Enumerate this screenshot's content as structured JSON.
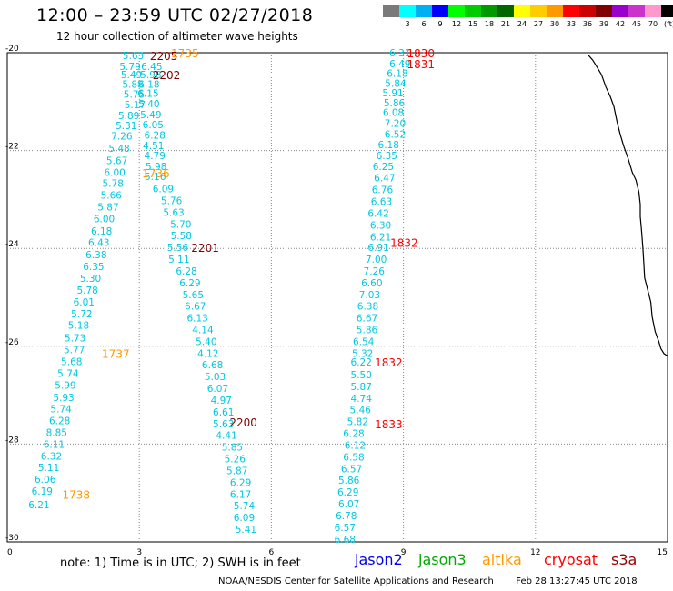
{
  "header": {
    "title": "12:00 – 23:59 UTC 02/27/2018",
    "subtitle": "12 hour collection of altimeter wave heights"
  },
  "scale": {
    "unit": "(ft)",
    "entries": [
      {
        "label": "",
        "color": "#7a7a7a"
      },
      {
        "label": "3",
        "color": "#00ffff"
      },
      {
        "label": "6",
        "color": "#00b0f0"
      },
      {
        "label": "9",
        "color": "#0000ff"
      },
      {
        "label": "12",
        "color": "#00ff00"
      },
      {
        "label": "15",
        "color": "#00cc00"
      },
      {
        "label": "18",
        "color": "#009900"
      },
      {
        "label": "21",
        "color": "#006600"
      },
      {
        "label": "24",
        "color": "#ffff00"
      },
      {
        "label": "27",
        "color": "#ffcc00"
      },
      {
        "label": "30",
        "color": "#ff9900"
      },
      {
        "label": "33",
        "color": "#ff0000"
      },
      {
        "label": "36",
        "color": "#cc0000"
      },
      {
        "label": "39",
        "color": "#800000"
      },
      {
        "label": "42",
        "color": "#9900cc"
      },
      {
        "label": "45",
        "color": "#cc33cc"
      },
      {
        "label": "70",
        "color": "#ff99cc"
      },
      {
        "label": "",
        "color": "#000000"
      }
    ]
  },
  "footer": {
    "note": "note: 1) Time is in UTC; 2) SWH is in feet",
    "legend": [
      {
        "label": "jason2",
        "color": "#0000ee"
      },
      {
        "label": "jason3",
        "color": "#00aa00"
      },
      {
        "label": "altika",
        "color": "#ff9900"
      },
      {
        "label": "cryosat",
        "color": "#ff0000"
      },
      {
        "label": "s3a",
        "color": "#990000"
      }
    ],
    "credit": "NOAA/NESDIS Center for Satellite Applications and Research",
    "timestamp": "Feb 28 13:27:45 UTC 2018"
  },
  "chart_data": {
    "type": "scatter",
    "x_ticks": [
      "0",
      "3",
      "6",
      "9",
      "12",
      "15"
    ],
    "y_ticks": [
      "-20",
      "-22",
      "-24",
      "-26",
      "-28",
      "-30"
    ],
    "xlim": [
      0,
      15
    ],
    "ylim": [
      -30,
      -20
    ],
    "grid": "dotted",
    "value_color": "#00c8e0",
    "series": [
      {
        "points": [
          {
            "x": 2.62,
            "y": -20.06,
            "v": "5.63"
          },
          {
            "x": 2.55,
            "y": -20.28,
            "v": "5.79"
          },
          {
            "x": 2.58,
            "y": -20.45,
            "v": "5.49"
          },
          {
            "x": 2.61,
            "y": -20.64,
            "v": "5.88"
          },
          {
            "x": 2.64,
            "y": -20.85,
            "v": "5.75"
          },
          {
            "x": 2.66,
            "y": -21.06,
            "v": "5.17"
          },
          {
            "x": 2.52,
            "y": -21.28,
            "v": "5.89"
          },
          {
            "x": 2.46,
            "y": -21.49,
            "v": "5.31"
          },
          {
            "x": 2.36,
            "y": -21.7,
            "v": "7.26"
          },
          {
            "x": 2.3,
            "y": -21.95,
            "v": "5.48"
          },
          {
            "x": 2.25,
            "y": -22.2,
            "v": "5.67"
          },
          {
            "x": 2.2,
            "y": -22.44,
            "v": "6.00"
          },
          {
            "x": 2.16,
            "y": -22.67,
            "v": "5.78"
          },
          {
            "x": 2.12,
            "y": -22.91,
            "v": "5.66"
          },
          {
            "x": 2.05,
            "y": -23.15,
            "v": "5.87"
          },
          {
            "x": 1.96,
            "y": -23.39,
            "v": "6.00"
          },
          {
            "x": 1.9,
            "y": -23.64,
            "v": "6.18"
          },
          {
            "x": 1.84,
            "y": -23.88,
            "v": "6.43"
          },
          {
            "x": 1.78,
            "y": -24.13,
            "v": "6.38"
          },
          {
            "x": 1.72,
            "y": -24.37,
            "v": "6.35"
          },
          {
            "x": 1.65,
            "y": -24.61,
            "v": "5.30"
          },
          {
            "x": 1.58,
            "y": -24.85,
            "v": "5.78"
          },
          {
            "x": 1.5,
            "y": -25.09,
            "v": "6.01"
          },
          {
            "x": 1.45,
            "y": -25.33,
            "v": "5.72"
          },
          {
            "x": 1.38,
            "y": -25.57,
            "v": "5.18"
          },
          {
            "x": 1.3,
            "y": -25.83,
            "v": "5.73"
          },
          {
            "x": 1.28,
            "y": -26.07,
            "v": "5.77"
          },
          {
            "x": 1.22,
            "y": -26.31,
            "v": "5.68"
          },
          {
            "x": 1.14,
            "y": -26.55,
            "v": "5.74"
          },
          {
            "x": 1.08,
            "y": -26.79,
            "v": "5.99"
          },
          {
            "x": 1.04,
            "y": -27.04,
            "v": "5.93"
          },
          {
            "x": 0.98,
            "y": -27.28,
            "v": "5.74"
          },
          {
            "x": 0.95,
            "y": -27.52,
            "v": "6.28"
          },
          {
            "x": 0.88,
            "y": -27.76,
            "v": "8.85"
          },
          {
            "x": 0.82,
            "y": -28.0,
            "v": "6.11"
          },
          {
            "x": 0.76,
            "y": -28.24,
            "v": "6.32"
          },
          {
            "x": 0.7,
            "y": -28.48,
            "v": "5.11"
          },
          {
            "x": 0.62,
            "y": -28.72,
            "v": "6.06"
          },
          {
            "x": 0.55,
            "y": -28.96,
            "v": "6.19"
          },
          {
            "x": 0.48,
            "y": -29.24,
            "v": "6.21"
          }
        ]
      },
      {
        "points": [
          {
            "x": 3.04,
            "y": -20.28,
            "v": "6.45"
          },
          {
            "x": 3.02,
            "y": -20.45,
            "v": "5.98"
          },
          {
            "x": 2.98,
            "y": -20.64,
            "v": "6.18"
          },
          {
            "x": 2.96,
            "y": -20.83,
            "v": "6.15"
          },
          {
            "x": 2.98,
            "y": -21.04,
            "v": "5.40"
          },
          {
            "x": 3.02,
            "y": -21.26,
            "v": "5.49"
          },
          {
            "x": 3.07,
            "y": -21.47,
            "v": "6.05"
          },
          {
            "x": 3.11,
            "y": -21.68,
            "v": "6.28"
          },
          {
            "x": 3.08,
            "y": -21.9,
            "v": "4.51"
          },
          {
            "x": 3.11,
            "y": -22.1,
            "v": "4.79"
          },
          {
            "x": 3.14,
            "y": -22.32,
            "v": "5.98"
          },
          {
            "x": 3.12,
            "y": -22.53,
            "v": "5.16"
          },
          {
            "x": 3.3,
            "y": -22.78,
            "v": "6.09"
          },
          {
            "x": 3.49,
            "y": -23.02,
            "v": "5.76"
          },
          {
            "x": 3.54,
            "y": -23.26,
            "v": "5.63"
          },
          {
            "x": 3.7,
            "y": -23.5,
            "v": "5.70"
          },
          {
            "x": 3.71,
            "y": -23.74,
            "v": "5.58"
          },
          {
            "x": 3.63,
            "y": -23.98,
            "v": "5.56"
          },
          {
            "x": 3.66,
            "y": -24.22,
            "v": "5.11"
          },
          {
            "x": 3.83,
            "y": -24.46,
            "v": "6.28"
          },
          {
            "x": 3.91,
            "y": -24.7,
            "v": "6.29"
          },
          {
            "x": 3.98,
            "y": -24.94,
            "v": "5.65"
          },
          {
            "x": 4.03,
            "y": -25.18,
            "v": "6.67"
          },
          {
            "x": 4.08,
            "y": -25.42,
            "v": "6.13"
          },
          {
            "x": 4.2,
            "y": -25.66,
            "v": "4.14"
          },
          {
            "x": 4.28,
            "y": -25.9,
            "v": "5.40"
          },
          {
            "x": 4.32,
            "y": -26.14,
            "v": "4.12"
          },
          {
            "x": 4.42,
            "y": -26.38,
            "v": "6.68"
          },
          {
            "x": 4.48,
            "y": -26.62,
            "v": "5.03"
          },
          {
            "x": 4.54,
            "y": -26.86,
            "v": "6.07"
          },
          {
            "x": 4.62,
            "y": -27.1,
            "v": "4.97"
          },
          {
            "x": 4.67,
            "y": -27.34,
            "v": "6.61"
          },
          {
            "x": 4.67,
            "y": -27.58,
            "v": "5.63"
          },
          {
            "x": 4.74,
            "y": -27.82,
            "v": "4.41"
          },
          {
            "x": 4.87,
            "y": -28.06,
            "v": "5.85"
          },
          {
            "x": 4.93,
            "y": -28.3,
            "v": "5.26"
          },
          {
            "x": 4.98,
            "y": -28.54,
            "v": "5.87"
          },
          {
            "x": 5.06,
            "y": -28.78,
            "v": "6.29"
          },
          {
            "x": 5.06,
            "y": -29.02,
            "v": "6.17"
          },
          {
            "x": 5.14,
            "y": -29.26,
            "v": "5.74"
          },
          {
            "x": 5.14,
            "y": -29.5,
            "v": "6.09"
          },
          {
            "x": 5.18,
            "y": -29.74,
            "v": "5.41"
          }
        ]
      },
      {
        "points": [
          {
            "x": 8.68,
            "y": -20.0,
            "v": "6.31"
          },
          {
            "x": 8.68,
            "y": -20.22,
            "v": "6.49"
          },
          {
            "x": 8.62,
            "y": -20.42,
            "v": "6.18"
          },
          {
            "x": 8.58,
            "y": -20.62,
            "v": "5.84"
          },
          {
            "x": 8.52,
            "y": -20.82,
            "v": "5.91"
          },
          {
            "x": 8.55,
            "y": -21.02,
            "v": "5.86"
          },
          {
            "x": 8.53,
            "y": -21.22,
            "v": "6.08"
          },
          {
            "x": 8.57,
            "y": -21.44,
            "v": "7.20"
          },
          {
            "x": 8.57,
            "y": -21.66,
            "v": "6.52"
          },
          {
            "x": 8.42,
            "y": -21.88,
            "v": "6.18"
          },
          {
            "x": 8.38,
            "y": -22.1,
            "v": "6.35"
          },
          {
            "x": 8.3,
            "y": -22.32,
            "v": "6.25"
          },
          {
            "x": 8.33,
            "y": -22.56,
            "v": "6.47"
          },
          {
            "x": 8.28,
            "y": -22.8,
            "v": "6.76"
          },
          {
            "x": 8.26,
            "y": -23.04,
            "v": "6.63"
          },
          {
            "x": 8.19,
            "y": -23.28,
            "v": "6.42"
          },
          {
            "x": 8.24,
            "y": -23.52,
            "v": "6.30"
          },
          {
            "x": 8.24,
            "y": -23.76,
            "v": "6.21"
          },
          {
            "x": 8.19,
            "y": -23.98,
            "v": "6.91"
          },
          {
            "x": 8.14,
            "y": -24.22,
            "v": "7.00"
          },
          {
            "x": 8.09,
            "y": -24.46,
            "v": "7.26"
          },
          {
            "x": 8.04,
            "y": -24.7,
            "v": "6.60"
          },
          {
            "x": 7.99,
            "y": -24.94,
            "v": "7.03"
          },
          {
            "x": 7.95,
            "y": -25.18,
            "v": "6.38"
          },
          {
            "x": 7.93,
            "y": -25.42,
            "v": "6.67"
          },
          {
            "x": 7.93,
            "y": -25.66,
            "v": "5.86"
          },
          {
            "x": 7.85,
            "y": -25.9,
            "v": "6.54"
          },
          {
            "x": 7.83,
            "y": -26.14,
            "v": "5.32"
          },
          {
            "x": 7.8,
            "y": -26.32,
            "v": "6.22"
          },
          {
            "x": 7.8,
            "y": -26.58,
            "v": "5.50"
          },
          {
            "x": 7.8,
            "y": -26.82,
            "v": "5.87"
          },
          {
            "x": 7.8,
            "y": -27.06,
            "v": "4.74"
          },
          {
            "x": 7.78,
            "y": -27.3,
            "v": "5.46"
          },
          {
            "x": 7.72,
            "y": -27.54,
            "v": "5.82"
          },
          {
            "x": 7.63,
            "y": -27.78,
            "v": "6.28"
          },
          {
            "x": 7.66,
            "y": -28.02,
            "v": "6.12"
          },
          {
            "x": 7.63,
            "y": -28.26,
            "v": "6.58"
          },
          {
            "x": 7.58,
            "y": -28.5,
            "v": "6.57"
          },
          {
            "x": 7.52,
            "y": -28.74,
            "v": "5.86"
          },
          {
            "x": 7.5,
            "y": -28.98,
            "v": "6.29"
          },
          {
            "x": 7.52,
            "y": -29.22,
            "v": "6.07"
          },
          {
            "x": 7.46,
            "y": -29.46,
            "v": "6.78"
          },
          {
            "x": 7.43,
            "y": -29.7,
            "v": "6.57"
          },
          {
            "x": 7.43,
            "y": -29.94,
            "v": "6.68"
          }
        ]
      }
    ],
    "time_labels": [
      {
        "x": 3.72,
        "y": -20.0,
        "t": "1735",
        "color": "#ff9900"
      },
      {
        "x": 3.24,
        "y": -20.06,
        "t": "2205",
        "color": "#800000"
      },
      {
        "x": 3.3,
        "y": -20.45,
        "t": "2202",
        "color": "#800000"
      },
      {
        "x": 3.06,
        "y": -22.45,
        "t": "1736",
        "color": "#ff9900"
      },
      {
        "x": 4.18,
        "y": -23.98,
        "t": "2201",
        "color": "#800000"
      },
      {
        "x": 2.15,
        "y": -26.14,
        "t": "1737",
        "color": "#ff9900"
      },
      {
        "x": 5.05,
        "y": -27.55,
        "t": "2200",
        "color": "#800000"
      },
      {
        "x": 1.25,
        "y": -29.02,
        "t": "1738",
        "color": "#ff9900"
      },
      {
        "x": 9.08,
        "y": -20.0,
        "t": "1830",
        "color": "#ff0000"
      },
      {
        "x": 9.08,
        "y": -20.22,
        "t": "1831",
        "color": "#ff0000"
      },
      {
        "x": 8.7,
        "y": -23.88,
        "t": "1832",
        "color": "#ff0000"
      },
      {
        "x": 8.35,
        "y": -26.32,
        "t": "1832",
        "color": "#ff0000"
      },
      {
        "x": 8.35,
        "y": -27.58,
        "t": "1833",
        "color": "#ff0000"
      }
    ],
    "coastline_lon_lat": [
      [
        13.2,
        -20.05
      ],
      [
        13.3,
        -20.15
      ],
      [
        13.4,
        -20.3
      ],
      [
        13.5,
        -20.45
      ],
      [
        13.6,
        -20.7
      ],
      [
        13.7,
        -20.9
      ],
      [
        13.78,
        -21.1
      ],
      [
        13.85,
        -21.4
      ],
      [
        13.92,
        -21.65
      ],
      [
        14.0,
        -21.9
      ],
      [
        14.1,
        -22.15
      ],
      [
        14.2,
        -22.45
      ],
      [
        14.28,
        -22.6
      ],
      [
        14.35,
        -22.85
      ],
      [
        14.38,
        -23.1
      ],
      [
        14.38,
        -23.35
      ],
      [
        14.4,
        -23.55
      ],
      [
        14.42,
        -23.75
      ],
      [
        14.44,
        -24.0
      ],
      [
        14.46,
        -24.3
      ],
      [
        14.48,
        -24.6
      ],
      [
        14.55,
        -24.85
      ],
      [
        14.62,
        -25.1
      ],
      [
        14.65,
        -25.4
      ],
      [
        14.72,
        -25.7
      ],
      [
        14.8,
        -25.9
      ],
      [
        14.85,
        -26.05
      ],
      [
        14.92,
        -26.15
      ],
      [
        15.0,
        -26.2
      ]
    ]
  }
}
